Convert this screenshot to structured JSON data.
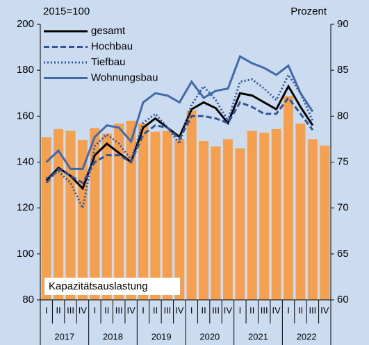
{
  "chart_data": {
    "type": "combo",
    "ylabel": "2015=100",
    "y2label": "Prozent",
    "categories": [
      "I",
      "II",
      "III",
      "IV",
      "I",
      "II",
      "III",
      "IV",
      "I",
      "II",
      "III",
      "IV",
      "I",
      "II",
      "III",
      "IV",
      "I",
      "II",
      "III",
      "IV",
      "I",
      "II",
      "III",
      "IV"
    ],
    "years": [
      "2017",
      "2018",
      "2019",
      "2020",
      "2021",
      "2022"
    ],
    "ylim": [
      80,
      200
    ],
    "yticks": [
      80,
      100,
      120,
      140,
      160,
      180,
      200
    ],
    "y2lim": [
      60,
      90
    ],
    "y2ticks": [
      60,
      65,
      70,
      75,
      80,
      85,
      90
    ],
    "series": [
      {
        "name": "Kapazitätsauslastung",
        "type": "bar",
        "axis": "y2",
        "color": "#f5a04f",
        "values": [
          77.7,
          78.6,
          78.4,
          77.4,
          78.7,
          78.1,
          79.2,
          79.5,
          79.2,
          78.3,
          78.4,
          77.5,
          80.6,
          77.3,
          76.7,
          77.5,
          76.5,
          78.4,
          78.2,
          78.6,
          82.2,
          79.2,
          77.5,
          76.8
        ]
      },
      {
        "name": "gesamt",
        "type": "line",
        "style": "solid",
        "color": "#000000",
        "values": [
          132,
          137.5,
          134,
          128.5,
          143,
          148,
          144,
          140,
          155,
          159,
          155,
          151,
          163,
          166,
          163.5,
          157,
          170,
          169,
          166,
          163,
          173,
          164,
          156,
          null
        ]
      },
      {
        "name": "Hochbau",
        "type": "line",
        "style": "dashed",
        "color": "#2f5597",
        "values": [
          131,
          137,
          134,
          131,
          140,
          143,
          143,
          140,
          152,
          156,
          155,
          150,
          160,
          160,
          159,
          157,
          166,
          164,
          161,
          161,
          168,
          161,
          154,
          null
        ]
      },
      {
        "name": "Tiefbau",
        "type": "line",
        "style": "dotted",
        "color": "#2f5597",
        "values": [
          133,
          136,
          131,
          120,
          147,
          152,
          148,
          141,
          157,
          161,
          155,
          148,
          165,
          173,
          167,
          158,
          175,
          176,
          172,
          167,
          178,
          170,
          158,
          null
        ]
      },
      {
        "name": "Wohnungsbau",
        "type": "line",
        "style": "solid",
        "color": "#4169a8",
        "values": [
          140,
          145,
          137,
          137,
          151,
          156,
          155,
          149,
          166,
          170,
          169,
          166,
          175,
          168,
          171,
          172,
          186,
          183,
          181,
          178,
          182,
          170,
          162,
          null
        ]
      }
    ]
  }
}
